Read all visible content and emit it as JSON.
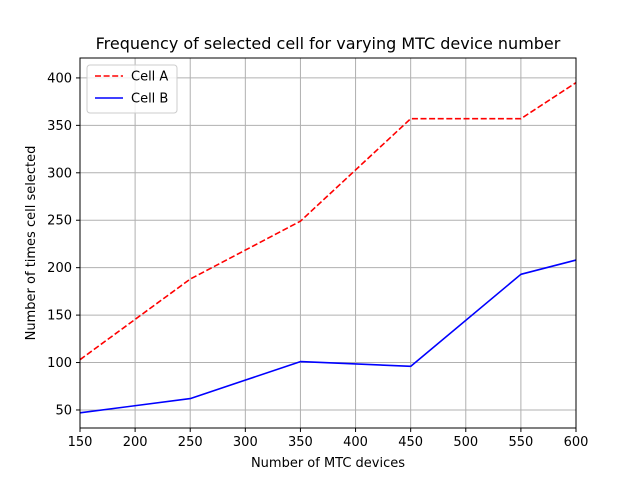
{
  "chart_data": {
    "type": "line",
    "title": "Frequency of selected cell for varying MTC device number",
    "xlabel": "Number of MTC devices",
    "ylabel": "Number of times cell selected",
    "xlim": [
      150,
      600
    ],
    "ylim": [
      31,
      421
    ],
    "x": [
      150,
      250,
      350,
      450,
      550,
      600
    ],
    "xticks": [
      150,
      200,
      250,
      300,
      350,
      400,
      450,
      500,
      550,
      600
    ],
    "yticks": [
      50,
      100,
      150,
      200,
      250,
      300,
      350,
      400
    ],
    "grid": true,
    "legend_position": "top-left",
    "series": [
      {
        "name": "Cell A",
        "values": [
          103,
          188,
          249,
          357,
          357,
          395
        ],
        "color": "#ff0000",
        "line_style": "dashed"
      },
      {
        "name": "Cell B",
        "values": [
          47,
          62,
          101,
          96,
          193,
          208
        ],
        "color": "#0000ff",
        "line_style": "solid"
      }
    ]
  }
}
